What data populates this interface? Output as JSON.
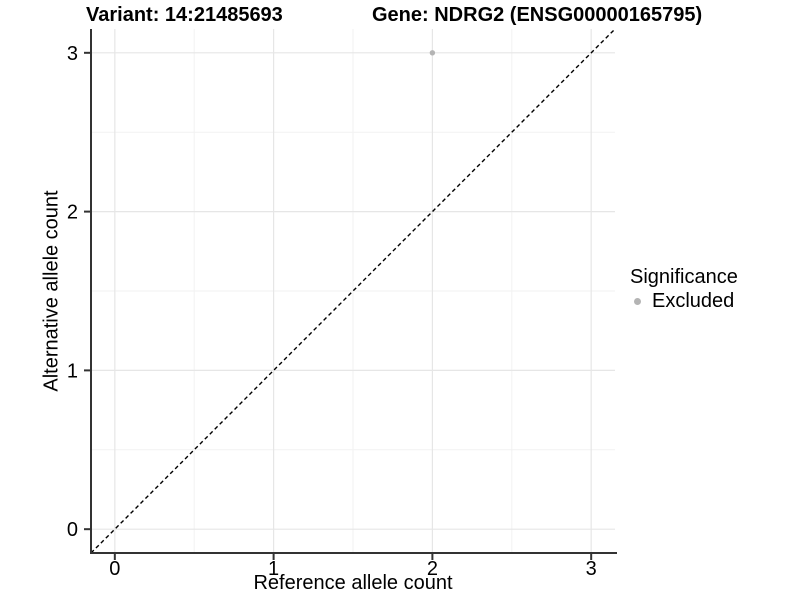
{
  "figure": {
    "background": "#ffffff"
  },
  "chart_data": {
    "type": "scatter",
    "titles": {
      "left": "Variant: 14:21485693",
      "right": "Gene: NDRG2 (ENSG00000165795)"
    },
    "xlabel": "Reference allele count",
    "ylabel": "Alternative allele count",
    "xlim": [
      -0.15,
      3.15
    ],
    "ylim": [
      -0.15,
      3.15
    ],
    "x_ticks": [
      0,
      1,
      2,
      3
    ],
    "y_ticks": [
      0,
      1,
      2,
      3
    ],
    "minor_gridlines": [
      0.5,
      1.5,
      2.5
    ],
    "grid": "on",
    "series": [
      {
        "name": "Excluded",
        "color": "#b4b4b4",
        "points": [
          {
            "x": 2,
            "y": 3
          }
        ]
      }
    ],
    "reference_line": {
      "type": "identity",
      "style": "dashed",
      "color": "#000000"
    },
    "legend": {
      "title": "Significance",
      "position": "right",
      "items": [
        {
          "label": "Excluded",
          "color": "#b4b4b4",
          "marker": "circle"
        }
      ]
    },
    "colors": {
      "grid_major": "#e6e6e6",
      "grid_minor": "#f2f2f2",
      "axis_line": "#333333",
      "tick_text": "#000000"
    }
  }
}
